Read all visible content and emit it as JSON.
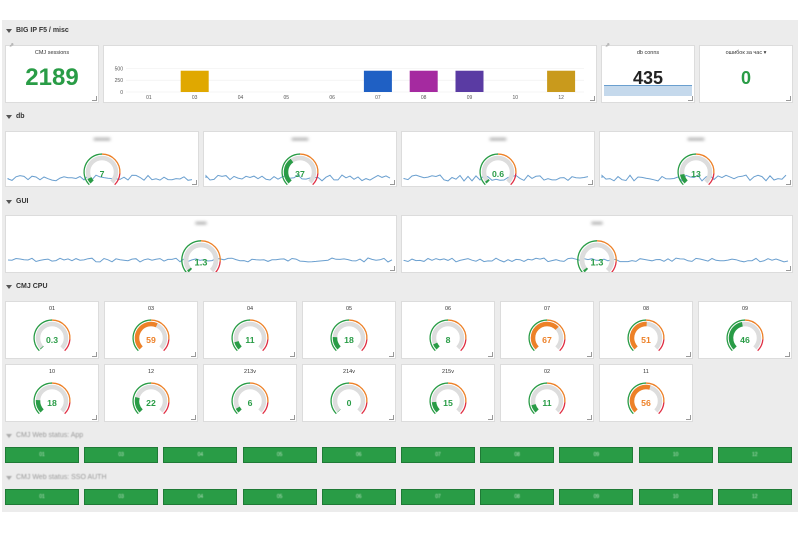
{
  "rows": {
    "big_ip": "BIG IP F5 / misc",
    "db": "db",
    "gui": "GUI",
    "cpu": "CMJ CPU",
    "web_app": "CMJ Web status: App",
    "web_sso": "CMJ Web status: SSO AUTH"
  },
  "big_ip": {
    "sessions": {
      "title": "CMJ sessions",
      "value": "2189"
    },
    "db_conns": {
      "title": "db conns",
      "value": "435"
    },
    "errors": {
      "title": "ошибок за час",
      "value": "0",
      "caret": "▾"
    },
    "bar_chart": {
      "chart_data": {
        "type": "bar",
        "categories": [
          "01",
          "03",
          "04",
          "05",
          "06",
          "07",
          "08",
          "09",
          "10",
          "12"
        ],
        "values": [
          0,
          450,
          0,
          0,
          0,
          450,
          450,
          450,
          0,
          450
        ],
        "colors": [
          "#299c46",
          "#e0a800",
          "#299c46",
          "#299c46",
          "#299c46",
          "#1f60c4",
          "#a52aa0",
          "#5a3ba3",
          "#299c46",
          "#c99a1c"
        ],
        "y_ticks": [
          "500",
          "250",
          "0"
        ],
        "ylim": [
          0,
          550
        ]
      }
    }
  },
  "db_gauges": [
    {
      "value": "7",
      "fill": 0.07,
      "color": "#299c46"
    },
    {
      "value": "37",
      "fill": 0.37,
      "color": "#299c46"
    },
    {
      "value": "0.6",
      "fill": 0.03,
      "color": "#299c46"
    },
    {
      "value": "13",
      "fill": 0.13,
      "color": "#299c46"
    }
  ],
  "gui_gauges": [
    {
      "value": "1.3",
      "fill": 0.03,
      "color": "#299c46"
    },
    {
      "value": "1.3",
      "fill": 0.03,
      "color": "#299c46"
    }
  ],
  "cpu_gauges": [
    {
      "title": "01",
      "value": "0.3",
      "fill": 0.01,
      "color": "#299c46"
    },
    {
      "title": "03",
      "value": "59",
      "fill": 0.59,
      "color": "#ed8128"
    },
    {
      "title": "04",
      "value": "11",
      "fill": 0.11,
      "color": "#299c46"
    },
    {
      "title": "05",
      "value": "18",
      "fill": 0.18,
      "color": "#299c46"
    },
    {
      "title": "06",
      "value": "8",
      "fill": 0.08,
      "color": "#299c46"
    },
    {
      "title": "07",
      "value": "67",
      "fill": 0.67,
      "color": "#ed8128"
    },
    {
      "title": "08",
      "value": "51",
      "fill": 0.51,
      "color": "#ed8128"
    },
    {
      "title": "09",
      "value": "46",
      "fill": 0.46,
      "color": "#299c46"
    },
    {
      "title": "10",
      "value": "18",
      "fill": 0.18,
      "color": "#299c46"
    },
    {
      "title": "12",
      "value": "22",
      "fill": 0.22,
      "color": "#299c46"
    },
    {
      "title": "213v",
      "value": "6",
      "fill": 0.06,
      "color": "#299c46"
    },
    {
      "title": "214v",
      "value": "0",
      "fill": 0.0,
      "color": "#299c46"
    },
    {
      "title": "215v",
      "value": "15",
      "fill": 0.15,
      "color": "#299c46"
    },
    {
      "title": "02",
      "value": "11",
      "fill": 0.11,
      "color": "#299c46"
    },
    {
      "title": "11",
      "value": "56",
      "fill": 0.56,
      "color": "#ed8128"
    }
  ],
  "status_labels": [
    "01",
    "03",
    "04",
    "05",
    "06",
    "07",
    "08",
    "09",
    "10",
    "12"
  ],
  "colors": {
    "ok": "#299c46",
    "warn": "#ed8128",
    "crit": "#e02f44",
    "track": "#dddddd",
    "sparkline": "#6a9fcf"
  }
}
